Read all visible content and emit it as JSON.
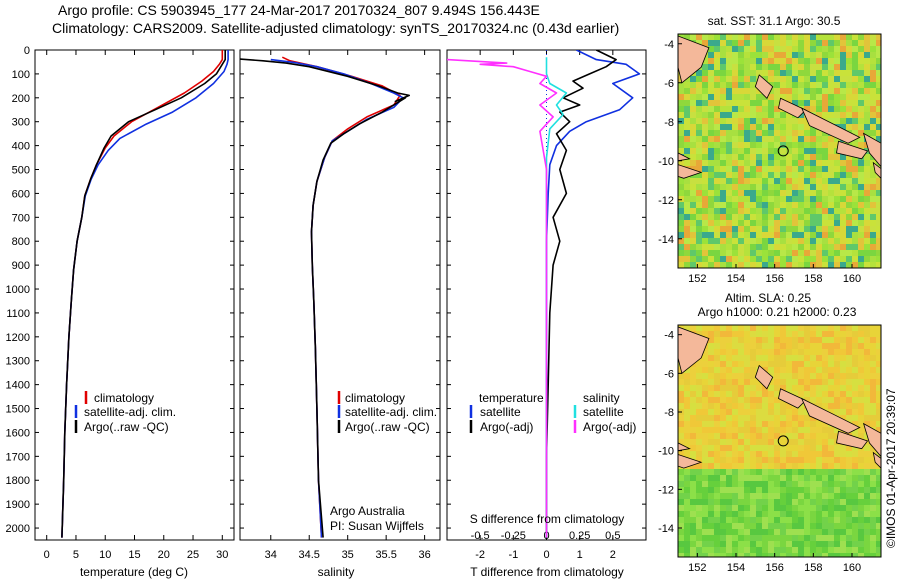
{
  "header": {
    "title_line1": "Argo profile: CS 5903945_177 24-Mar-2017 20170324_807 9.494S 156.443E",
    "title_line2": "Climatology: CARS2009. Satellite-adjusted climatology: synTS_20170324.nc (0.43d earlier)"
  },
  "colors": {
    "climatology": "#e00000",
    "satellite": "#1030e0",
    "argo": "#000000",
    "satellite_s": "#20e0e0",
    "argo_s": "#ff30ff"
  },
  "chart_data": [
    {
      "type": "line",
      "panel": "temperature",
      "xlabel": "temperature (deg C)",
      "ylabel": "",
      "xlim": [
        -2,
        32
      ],
      "ylim": [
        2050,
        0
      ],
      "xticks": [
        "0",
        "5",
        "10",
        "15",
        "20",
        "25",
        "30"
      ],
      "yticks": [
        "0",
        "100",
        "200",
        "300",
        "400",
        "500",
        "600",
        "700",
        "800",
        "900",
        "1000",
        "1100",
        "1200",
        "1300",
        "1400",
        "1500",
        "1600",
        "1700",
        "1800",
        "1900",
        "2000"
      ],
      "series": [
        {
          "name": "climatology",
          "color": "#e00000",
          "points": [
            [
              30,
              0
            ],
            [
              30,
              40
            ],
            [
              29.5,
              60
            ],
            [
              28.5,
              90
            ],
            [
              26.5,
              130
            ],
            [
              23.5,
              180
            ],
            [
              19,
              240
            ],
            [
              14.5,
              300
            ],
            [
              11.5,
              360
            ],
            [
              10,
              410
            ],
            [
              8.5,
              480
            ],
            [
              7.5,
              540
            ],
            [
              6.5,
              610
            ],
            [
              6,
              700
            ],
            [
              5.2,
              800
            ],
            [
              4.6,
              920
            ],
            [
              4.2,
              1050
            ],
            [
              3.8,
              1200
            ],
            [
              3.4,
              1400
            ],
            [
              3.1,
              1600
            ],
            [
              2.9,
              1800
            ],
            [
              2.6,
              2040
            ]
          ]
        },
        {
          "name": "satellite-adj. clim.",
          "color": "#1030e0",
          "points": [
            [
              31,
              0
            ],
            [
              31,
              40
            ],
            [
              30.8,
              60
            ],
            [
              30.3,
              90
            ],
            [
              28.5,
              140
            ],
            [
              25.5,
              200
            ],
            [
              21.5,
              260
            ],
            [
              17,
              310
            ],
            [
              12.5,
              370
            ],
            [
              10.5,
              420
            ],
            [
              8.8,
              480
            ],
            [
              7.6,
              540
            ],
            [
              6.6,
              610
            ],
            [
              6,
              700
            ],
            [
              5.2,
              800
            ],
            [
              4.6,
              920
            ],
            [
              4.2,
              1050
            ],
            [
              3.8,
              1200
            ],
            [
              3.4,
              1400
            ],
            [
              3.1,
              1600
            ],
            [
              2.9,
              1800
            ],
            [
              2.6,
              2040
            ]
          ]
        },
        {
          "name": "Argo(..raw -QC)",
          "color": "#000000",
          "points": [
            [
              30.5,
              0
            ],
            [
              30.5,
              40
            ],
            [
              30,
              60
            ],
            [
              29,
              100
            ],
            [
              27,
              140
            ],
            [
              23,
              200
            ],
            [
              18.5,
              250
            ],
            [
              14,
              300
            ],
            [
              11,
              360
            ],
            [
              9.8,
              410
            ],
            [
              8.5,
              480
            ],
            [
              7.5,
              540
            ],
            [
              6.5,
              610
            ],
            [
              6,
              700
            ],
            [
              5.2,
              800
            ],
            [
              4.6,
              920
            ],
            [
              4.2,
              1050
            ],
            [
              3.8,
              1200
            ],
            [
              3.4,
              1400
            ],
            [
              3.1,
              1600
            ],
            [
              2.9,
              1800
            ],
            [
              2.6,
              2040
            ]
          ]
        }
      ],
      "legend": [
        "climatology",
        "satellite-adj. clim.",
        "Argo(..raw -QC)"
      ]
    },
    {
      "type": "line",
      "panel": "salinity",
      "xlabel": "salinity",
      "ylabel": "",
      "xlim": [
        33.6,
        36.2
      ],
      "ylim": [
        2050,
        0
      ],
      "xticks": [
        "34",
        "34.5",
        "35",
        "35.5",
        "36"
      ],
      "series": [
        {
          "name": "climatology",
          "color": "#e00000",
          "points": [
            [
              34.15,
              30
            ],
            [
              34.25,
              45
            ],
            [
              34.6,
              70
            ],
            [
              35.05,
              110
            ],
            [
              35.45,
              150
            ],
            [
              35.68,
              190
            ],
            [
              35.6,
              230
            ],
            [
              35.25,
              280
            ],
            [
              35,
              330
            ],
            [
              34.8,
              380
            ],
            [
              34.7,
              450
            ],
            [
              34.6,
              550
            ],
            [
              34.55,
              650
            ],
            [
              34.53,
              760
            ],
            [
              34.54,
              900
            ],
            [
              34.56,
              1050
            ],
            [
              34.58,
              1250
            ],
            [
              34.6,
              1500
            ],
            [
              34.62,
              1800
            ],
            [
              34.66,
              2040
            ]
          ]
        },
        {
          "name": "satellite-adj. clim.",
          "color": "#1030e0",
          "points": [
            [
              34.0,
              40
            ],
            [
              34.3,
              52
            ],
            [
              34.6,
              70
            ],
            [
              34.95,
              100
            ],
            [
              35.3,
              140
            ],
            [
              35.6,
              180
            ],
            [
              35.72,
              200
            ],
            [
              35.6,
              240
            ],
            [
              35.25,
              290
            ],
            [
              35,
              340
            ],
            [
              34.8,
              380
            ],
            [
              34.7,
              450
            ],
            [
              34.6,
              550
            ],
            [
              34.55,
              650
            ],
            [
              34.53,
              760
            ],
            [
              34.54,
              900
            ],
            [
              34.56,
              1050
            ],
            [
              34.58,
              1250
            ],
            [
              34.6,
              1500
            ],
            [
              34.62,
              1800
            ],
            [
              34.66,
              2040
            ]
          ]
        },
        {
          "name": "Argo(..raw -QC)",
          "color": "#000000",
          "points": [
            [
              33.6,
              38
            ],
            [
              33.9,
              45
            ],
            [
              34.2,
              55
            ],
            [
              34.5,
              70
            ],
            [
              35.0,
              110
            ],
            [
              35.4,
              150
            ],
            [
              35.65,
              180
            ],
            [
              35.8,
              190
            ],
            [
              35.62,
              215
            ],
            [
              35.75,
              200
            ],
            [
              35.45,
              260
            ],
            [
              35.15,
              310
            ],
            [
              34.95,
              350
            ],
            [
              34.78,
              390
            ],
            [
              34.68,
              460
            ],
            [
              34.6,
              550
            ],
            [
              34.55,
              650
            ],
            [
              34.53,
              760
            ],
            [
              34.54,
              900
            ],
            [
              34.56,
              1050
            ],
            [
              34.58,
              1250
            ],
            [
              34.6,
              1500
            ],
            [
              34.62,
              1800
            ],
            [
              34.68,
              2040
            ]
          ]
        }
      ],
      "legend": [
        "climatology",
        "satellite-adj. clim.",
        "Argo(..raw -QC)"
      ],
      "annotation": [
        "Argo Australia",
        "PI: Susan Wijffels"
      ]
    },
    {
      "type": "line",
      "panel": "difference",
      "xlabel": "T difference from climatology",
      "xlabel_top": "S difference from climatology",
      "xlim_t": [
        -3,
        3
      ],
      "ylim": [
        2050,
        0
      ],
      "xticks_t": [
        "-2",
        "-1",
        "0",
        "1",
        "2"
      ],
      "xticks_s": [
        "-0.5",
        "-0.25",
        "0",
        "0.25",
        "0.5"
      ],
      "series": [
        {
          "name": "T satellite",
          "color": "#1030e0",
          "points": [
            [
              0.9,
              0
            ],
            [
              1.5,
              40
            ],
            [
              2.4,
              60
            ],
            [
              2.8,
              100
            ],
            [
              2.0,
              140
            ],
            [
              2.6,
              200
            ],
            [
              2.2,
              250
            ],
            [
              1.2,
              300
            ],
            [
              0.7,
              340
            ],
            [
              0.3,
              400
            ],
            [
              0.1,
              480
            ],
            [
              0.05,
              600
            ],
            [
              0,
              800
            ],
            [
              0,
              2040
            ]
          ]
        },
        {
          "name": "T Argo(-adj)",
          "color": "#000000",
          "points": [
            [
              1.5,
              0
            ],
            [
              2.1,
              40
            ],
            [
              1.8,
              70
            ],
            [
              1.3,
              100
            ],
            [
              0.8,
              130
            ],
            [
              1.1,
              160
            ],
            [
              0.5,
              200
            ],
            [
              1.0,
              230
            ],
            [
              0.4,
              260
            ],
            [
              0.7,
              300
            ],
            [
              0.3,
              350
            ],
            [
              0.6,
              420
            ],
            [
              0.4,
              500
            ],
            [
              0.6,
              600
            ],
            [
              0.2,
              700
            ],
            [
              0.4,
              800
            ],
            [
              0.2,
              900
            ],
            [
              0.1,
              1100
            ],
            [
              0.05,
              1400
            ],
            [
              0,
              1700
            ],
            [
              0,
              2040
            ]
          ]
        },
        {
          "name": "S satellite",
          "color": "#20e0e0",
          "points": [
            [
              0,
              30
            ],
            [
              0,
              100
            ],
            [
              0.1,
              140
            ],
            [
              0.6,
              180
            ],
            [
              0.3,
              230
            ],
            [
              0.5,
              270
            ],
            [
              0.1,
              330
            ],
            [
              0,
              450
            ],
            [
              0,
              2040
            ]
          ]
        },
        {
          "name": "S Argo(-adj)",
          "color": "#ff30ff",
          "points": [
            [
              -3,
              40
            ],
            [
              -1.2,
              55
            ],
            [
              -2,
              60
            ],
            [
              -1,
              70
            ],
            [
              -0.5,
              90
            ],
            [
              0,
              110
            ],
            [
              -0.2,
              140
            ],
            [
              0.3,
              180
            ],
            [
              -0.2,
              230
            ],
            [
              0.2,
              280
            ],
            [
              -0.2,
              340
            ],
            [
              -0.1,
              420
            ],
            [
              0,
              500
            ],
            [
              0,
              2040
            ]
          ]
        }
      ],
      "legend_temperature": {
        "title": "temperature",
        "items": [
          "satellite",
          "Argo(-adj)"
        ]
      },
      "legend_salinity": {
        "title": "salinity",
        "items": [
          "satellite",
          "Argo(-adj)"
        ]
      }
    },
    {
      "type": "heatmap",
      "panel": "sst_map",
      "title": "sat. SST: 31.1  Argo: 30.5",
      "xticks": [
        "152",
        "154",
        "156",
        "158",
        "160"
      ],
      "yticks": [
        "-4",
        "-6",
        "-8",
        "-10",
        "-12",
        "-14"
      ],
      "xlim": [
        151,
        161.5
      ],
      "ylim": [
        -15.5,
        -3.5
      ],
      "marker": [
        156.443,
        -9.494
      ]
    },
    {
      "type": "heatmap",
      "panel": "sla_map",
      "title": "Altim. SLA: 0.25",
      "subtitle": "Argo h1000: 0.21 h2000: 0.23",
      "xticks": [
        "152",
        "154",
        "156",
        "158",
        "160"
      ],
      "yticks": [
        "-4",
        "-6",
        "-8",
        "-10",
        "-12",
        "-14"
      ],
      "xlim": [
        151,
        161.5
      ],
      "ylim": [
        -15.5,
        -3.5
      ],
      "marker": [
        156.443,
        -9.494
      ]
    }
  ],
  "side_label": "©IMOS 01-Apr-2017 20:39:07"
}
